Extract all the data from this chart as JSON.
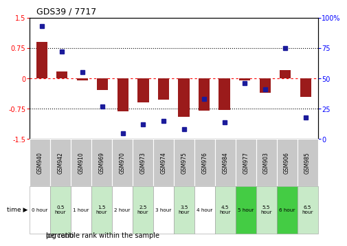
{
  "title": "GDS39 / 7717",
  "samples": [
    "GSM940",
    "GSM942",
    "GSM910",
    "GSM969",
    "GSM970",
    "GSM973",
    "GSM974",
    "GSM975",
    "GSM976",
    "GSM984",
    "GSM977",
    "GSM903",
    "GSM906",
    "GSM985"
  ],
  "time_labels": [
    "0 hour",
    "0.5\nhour",
    "1 hour",
    "1.5\nhour",
    "2 hour",
    "2.5\nhour",
    "3 hour",
    "3.5\nhour",
    "4 hour",
    "4.5\nhour",
    "5 hour",
    "5.5\nhour",
    "6 hour",
    "6.5\nhour"
  ],
  "log_ratio": [
    0.9,
    0.17,
    -0.05,
    -0.28,
    -0.82,
    -0.6,
    -0.52,
    -0.95,
    -0.8,
    -0.78,
    -0.05,
    -0.35,
    0.2,
    -0.45
  ],
  "percentile": [
    93,
    72,
    55,
    27,
    5,
    12,
    15,
    8,
    33,
    14,
    46,
    41,
    75,
    18
  ],
  "ylim_left": [
    -1.5,
    1.5
  ],
  "ylim_right": [
    0,
    100
  ],
  "yticks_left": [
    -1.5,
    -0.75,
    0,
    0.75,
    1.5
  ],
  "yticks_right": [
    0,
    25,
    50,
    75,
    100
  ],
  "ytick_labels_left": [
    "-1.5",
    "-0.75",
    "0",
    "0.75",
    "1.5"
  ],
  "ytick_labels_right": [
    "0",
    "25",
    "50",
    "75",
    "100%"
  ],
  "bar_color": "#9B1B1B",
  "dot_color": "#1B1B9B",
  "time_colors": [
    "#ffffff",
    "#c8eac8",
    "#ffffff",
    "#c8eac8",
    "#ffffff",
    "#c8eac8",
    "#ffffff",
    "#c8eac8",
    "#ffffff",
    "#c8eac8",
    "#44cc44",
    "#c8eac8",
    "#44cc44",
    "#c8eac8"
  ],
  "bg_sample_color": "#c8c8c8",
  "legend_log_ratio": "log ratio",
  "legend_percentile": "percentile rank within the sample"
}
